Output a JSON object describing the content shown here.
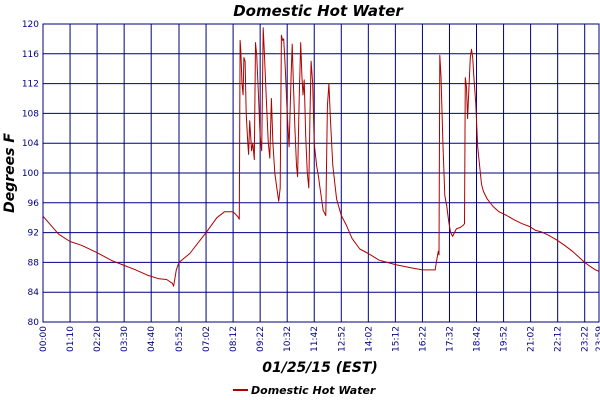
{
  "chart_data": {
    "type": "line",
    "title": "Domestic Hot Water",
    "xlabel": "01/25/15 (EST)",
    "ylabel": "Degrees F",
    "ylim": [
      80,
      120
    ],
    "xlim_minutes": [
      0,
      1439
    ],
    "grid": true,
    "legend_placement": "bottom",
    "colors": {
      "title": "#000080",
      "axis_text": "#000080",
      "grid": "#000080",
      "plot_border": "#000080",
      "series": "#b00000"
    },
    "y_ticks": [
      "80",
      "84",
      "88",
      "92",
      "96",
      "100",
      "104",
      "108",
      "112",
      "116",
      "120"
    ],
    "x_tick_labels": [
      "00:00",
      "01:10",
      "02:20",
      "03:30",
      "04:40",
      "05:52",
      "07:02",
      "08:12",
      "09:22",
      "10:32",
      "11:42",
      "12:52",
      "14:02",
      "15:12",
      "16:22",
      "17:32",
      "18:42",
      "19:52",
      "21:02",
      "22:12",
      "23:22",
      "23:59"
    ],
    "x_tick_minutes": [
      0,
      70,
      140,
      210,
      280,
      352,
      422,
      492,
      562,
      632,
      702,
      772,
      842,
      912,
      982,
      1052,
      1122,
      1192,
      1262,
      1332,
      1402,
      1439
    ],
    "series": [
      {
        "name": "Domestic Hot Water",
        "points": [
          [
            0,
            94.2
          ],
          [
            20,
            93
          ],
          [
            40,
            91.8
          ],
          [
            70,
            90.8
          ],
          [
            100,
            90.3
          ],
          [
            140,
            89.3
          ],
          [
            180,
            88.2
          ],
          [
            210,
            87.6
          ],
          [
            240,
            87
          ],
          [
            270,
            86.3
          ],
          [
            300,
            85.8
          ],
          [
            320,
            85.7
          ],
          [
            335,
            85.2
          ],
          [
            338,
            84.8
          ],
          [
            345,
            87
          ],
          [
            352,
            88
          ],
          [
            380,
            89.2
          ],
          [
            410,
            91.2
          ],
          [
            422,
            92
          ],
          [
            450,
            94
          ],
          [
            470,
            94.8
          ],
          [
            492,
            94.8
          ],
          [
            505,
            94.1
          ],
          [
            508,
            93.8
          ],
          [
            510,
            117.8
          ],
          [
            512,
            116.5
          ],
          [
            515,
            112
          ],
          [
            518,
            110.5
          ],
          [
            520,
            115.5
          ],
          [
            523,
            115
          ],
          [
            526,
            108
          ],
          [
            530,
            104
          ],
          [
            532,
            102.5
          ],
          [
            535,
            107
          ],
          [
            540,
            103
          ],
          [
            543,
            104
          ],
          [
            547,
            101.8
          ],
          [
            550,
            117.5
          ],
          [
            553,
            115.8
          ],
          [
            558,
            110
          ],
          [
            562,
            105
          ],
          [
            566,
            103
          ],
          [
            570,
            119.5
          ],
          [
            573,
            116
          ],
          [
            578,
            110
          ],
          [
            583,
            104
          ],
          [
            587,
            102
          ],
          [
            591,
            110
          ],
          [
            595,
            104
          ],
          [
            600,
            100
          ],
          [
            605,
            98
          ],
          [
            610,
            96.2
          ],
          [
            614,
            98
          ],
          [
            617,
            118.5
          ],
          [
            620,
            117.8
          ],
          [
            623,
            118
          ],
          [
            627,
            114
          ],
          [
            632,
            108
          ],
          [
            637,
            103.5
          ],
          [
            642,
            113
          ],
          [
            645,
            117.3
          ],
          [
            648,
            112
          ],
          [
            652,
            106
          ],
          [
            656,
            101
          ],
          [
            659,
            99.5
          ],
          [
            663,
            110
          ],
          [
            667,
            117.5
          ],
          [
            670,
            113
          ],
          [
            673,
            110.5
          ],
          [
            676,
            112.5
          ],
          [
            680,
            105
          ],
          [
            684,
            100
          ],
          [
            688,
            98
          ],
          [
            691,
            108
          ],
          [
            694,
            115
          ],
          [
            698,
            112
          ],
          [
            702,
            104
          ],
          [
            708,
            101
          ],
          [
            713,
            99.5
          ],
          [
            717,
            98
          ],
          [
            721,
            96.5
          ],
          [
            725,
            95
          ],
          [
            732,
            94.3
          ],
          [
            736,
            109
          ],
          [
            740,
            112
          ],
          [
            744,
            107
          ],
          [
            750,
            101
          ],
          [
            760,
            96.5
          ],
          [
            772,
            94.3
          ],
          [
            785,
            93
          ],
          [
            800,
            91.2
          ],
          [
            820,
            89.8
          ],
          [
            842,
            89.2
          ],
          [
            870,
            88.3
          ],
          [
            912,
            87.7
          ],
          [
            950,
            87.3
          ],
          [
            982,
            87
          ],
          [
            1000,
            87
          ],
          [
            1015,
            87
          ],
          [
            1018,
            88
          ],
          [
            1023,
            89.5
          ],
          [
            1025,
            89
          ],
          [
            1027,
            115.8
          ],
          [
            1030,
            113
          ],
          [
            1035,
            104
          ],
          [
            1040,
            97
          ],
          [
            1045,
            95.5
          ],
          [
            1050,
            93.5
          ],
          [
            1055,
            92
          ],
          [
            1060,
            91.5
          ],
          [
            1065,
            92
          ],
          [
            1070,
            92.5
          ],
          [
            1080,
            92.7
          ],
          [
            1088,
            93
          ],
          [
            1091,
            93.2
          ],
          [
            1093,
            112.8
          ],
          [
            1096,
            111.5
          ],
          [
            1099,
            107.3
          ],
          [
            1102,
            111
          ],
          [
            1106,
            115.5
          ],
          [
            1109,
            116.6
          ],
          [
            1112,
            115.5
          ],
          [
            1115,
            113
          ],
          [
            1120,
            109.5
          ],
          [
            1125,
            103.5
          ],
          [
            1130,
            101
          ],
          [
            1135,
            98.5
          ],
          [
            1140,
            97.5
          ],
          [
            1150,
            96.5
          ],
          [
            1165,
            95.5
          ],
          [
            1180,
            94.8
          ],
          [
            1200,
            94.3
          ],
          [
            1220,
            93.7
          ],
          [
            1240,
            93.2
          ],
          [
            1260,
            92.8
          ],
          [
            1275,
            92.3
          ],
          [
            1290,
            92.1
          ],
          [
            1310,
            91.6
          ],
          [
            1330,
            91
          ],
          [
            1350,
            90.3
          ],
          [
            1370,
            89.5
          ],
          [
            1385,
            88.8
          ],
          [
            1400,
            88.1
          ],
          [
            1415,
            87.5
          ],
          [
            1430,
            87
          ],
          [
            1439,
            86.8
          ]
        ]
      }
    ]
  }
}
